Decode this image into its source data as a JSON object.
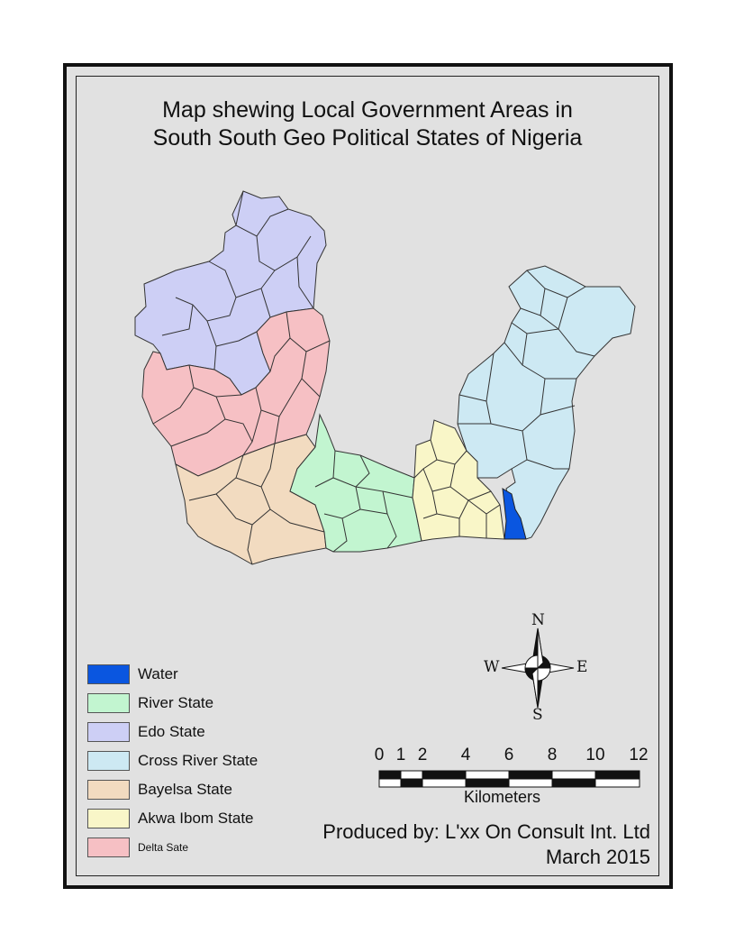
{
  "map": {
    "title_line1": "Map shewing Local Government Areas in",
    "title_line2": "South South Geo Political States of Nigeria",
    "legend": [
      {
        "label": "Water",
        "color": "#0a56e0"
      },
      {
        "label": "River State",
        "color": "#c2f5d0"
      },
      {
        "label": "Edo State",
        "color": "#cdcff5"
      },
      {
        "label": "Cross River State",
        "color": "#cde9f3"
      },
      {
        "label": "Bayelsa State",
        "color": "#f2dbc0"
      },
      {
        "label": "Akwa Ibom State",
        "color": "#f9f6c8"
      },
      {
        "label": "Delta Sate",
        "color": "#f6c0c4"
      }
    ],
    "compass": {
      "n": "N",
      "s": "S",
      "e": "E",
      "w": "W"
    },
    "scale_bar": {
      "ticks": [
        "0",
        "1",
        "2",
        "4",
        "6",
        "8",
        "10",
        "12"
      ],
      "units": "Kilometers"
    },
    "credit_line1": "Produced by: L'xx On Consult Int. Ltd",
    "credit_line2": "March 2015"
  }
}
